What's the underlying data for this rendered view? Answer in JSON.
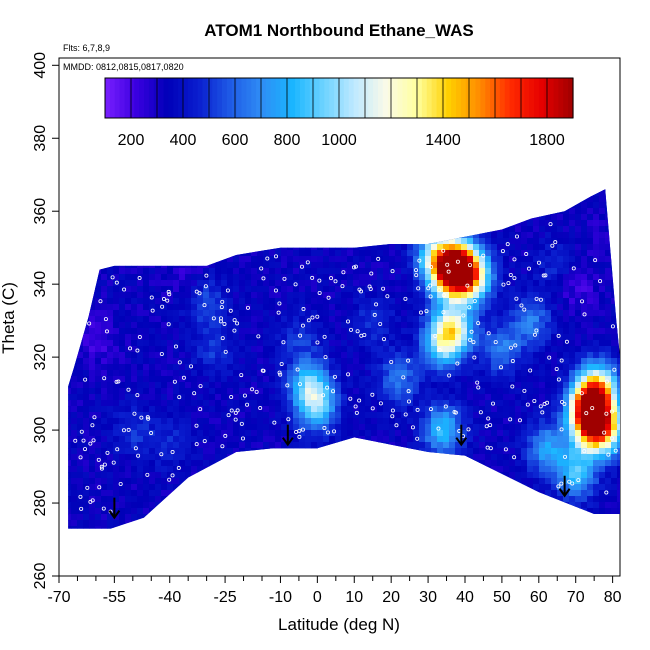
{
  "chart_data": {
    "type": "heatmap",
    "title": "ATOM1 Northbound Ethane_WAS",
    "notes": [
      "Flts: 6,7,8,9",
      "MMDD: 0812,0815,0817,0820"
    ],
    "xlabel": "Latitude (deg N)",
    "ylabel": "Theta (C)",
    "xlim": [
      -70,
      82
    ],
    "ylim": [
      260,
      402
    ],
    "x_tick_labels": [
      "-70",
      "-55",
      "-40",
      "-25",
      "-10",
      "0",
      "10",
      "20",
      "30",
      "40",
      "50",
      "60",
      "70",
      "80"
    ],
    "x_tick_values": [
      -70,
      -55,
      -40,
      -25,
      -10,
      0,
      10,
      20,
      30,
      40,
      50,
      60,
      70,
      80
    ],
    "x_minor_ticks": [
      -65,
      -60,
      -50,
      -45,
      -35,
      -30,
      -20,
      -15,
      -5,
      5,
      15,
      25,
      35,
      45,
      55,
      65,
      75
    ],
    "y_tick_labels": [
      "260",
      "280",
      "300",
      "320",
      "340",
      "360",
      "380",
      "400"
    ],
    "y_tick_values": [
      260,
      280,
      300,
      320,
      340,
      360,
      380,
      400
    ],
    "colorbar": {
      "range": [
        100,
        1900
      ],
      "tick_labels": [
        "200",
        "400",
        "600",
        "800",
        "1000",
        "1400",
        "1800"
      ],
      "tick_values": [
        200,
        400,
        600,
        800,
        1000,
        1400,
        1800
      ],
      "colors": [
        "#7a1fff",
        "#3a00e0",
        "#0000b8",
        "#0a1ecf",
        "#1e5ae6",
        "#2f8cf5",
        "#19b5ff",
        "#6cd2ff",
        "#bfe9ff",
        "#fafae8",
        "#ffff9e",
        "#ffd000",
        "#ff8c00",
        "#ff2a00",
        "#e60000",
        "#a00000"
      ]
    },
    "background_color": "#0a28c8",
    "upper_boundary": [
      [
        -67.5,
        312
      ],
      [
        -66,
        317
      ],
      [
        -62,
        331
      ],
      [
        -59,
        344
      ],
      [
        -55,
        345
      ],
      [
        -30,
        345
      ],
      [
        -22,
        348
      ],
      [
        -10,
        350
      ],
      [
        0,
        350
      ],
      [
        10,
        350
      ],
      [
        20,
        351
      ],
      [
        30,
        351
      ],
      [
        40,
        353
      ],
      [
        50,
        355
      ],
      [
        58,
        358
      ],
      [
        67,
        360
      ],
      [
        74,
        364
      ],
      [
        78,
        366
      ],
      [
        81,
        330
      ],
      [
        82,
        320
      ]
    ],
    "lower_boundary": [
      [
        -67.5,
        273
      ],
      [
        -56,
        273
      ],
      [
        -47,
        276
      ],
      [
        -35,
        287
      ],
      [
        -22,
        294
      ],
      [
        -12,
        295
      ],
      [
        0,
        295
      ],
      [
        10,
        298
      ],
      [
        20,
        296
      ],
      [
        30,
        294
      ],
      [
        40,
        293
      ],
      [
        50,
        288
      ],
      [
        60,
        283
      ],
      [
        70,
        279
      ],
      [
        75,
        277
      ],
      [
        82,
        277
      ]
    ],
    "hotspots": [
      {
        "lat": 38,
        "theta": 345,
        "value": 1400
      },
      {
        "lat": 36,
        "theta": 343,
        "value": 1250
      },
      {
        "lat": 42,
        "theta": 342,
        "value": 1100
      },
      {
        "lat": 32,
        "theta": 348,
        "value": 900
      },
      {
        "lat": 37,
        "theta": 328,
        "value": 1000
      },
      {
        "lat": 34,
        "theta": 324,
        "value": 950
      },
      {
        "lat": 74,
        "theta": 306,
        "value": 1800
      },
      {
        "lat": 75,
        "theta": 300,
        "value": 1300
      },
      {
        "lat": 76,
        "theta": 312,
        "value": 1100
      },
      {
        "lat": 70,
        "theta": 288,
        "value": 850
      },
      {
        "lat": 62,
        "theta": 295,
        "value": 750
      },
      {
        "lat": 80,
        "theta": 300,
        "value": 750
      },
      {
        "lat": -2,
        "theta": 312,
        "value": 900
      },
      {
        "lat": 0,
        "theta": 306,
        "value": 800
      },
      {
        "lat": 34,
        "theta": 300,
        "value": 850
      },
      {
        "lat": 22,
        "theta": 314,
        "value": 650
      },
      {
        "lat": 50,
        "theta": 322,
        "value": 650
      },
      {
        "lat": 58,
        "theta": 330,
        "value": 650
      },
      {
        "lat": -30,
        "theta": 335,
        "value": 550
      },
      {
        "lat": -28,
        "theta": 322,
        "value": 500
      },
      {
        "lat": -50,
        "theta": 300,
        "value": 500
      },
      {
        "lat": -40,
        "theta": 296,
        "value": 480
      },
      {
        "lat": -5,
        "theta": 325,
        "value": 500
      },
      {
        "lat": 15,
        "theta": 330,
        "value": 500
      },
      {
        "lat": 65,
        "theta": 345,
        "value": 480
      },
      {
        "lat": 70,
        "theta": 340,
        "value": 200
      },
      {
        "lat": -60,
        "theta": 325,
        "value": 220
      },
      {
        "lat": -35,
        "theta": 343,
        "value": 250
      },
      {
        "lat": 75,
        "theta": 355,
        "value": 300
      }
    ],
    "arrows": [
      {
        "lat": -55,
        "theta": 276
      },
      {
        "lat": -8,
        "theta": 296
      },
      {
        "lat": 39,
        "theta": 296
      },
      {
        "lat": 67,
        "theta": 282
      }
    ]
  }
}
